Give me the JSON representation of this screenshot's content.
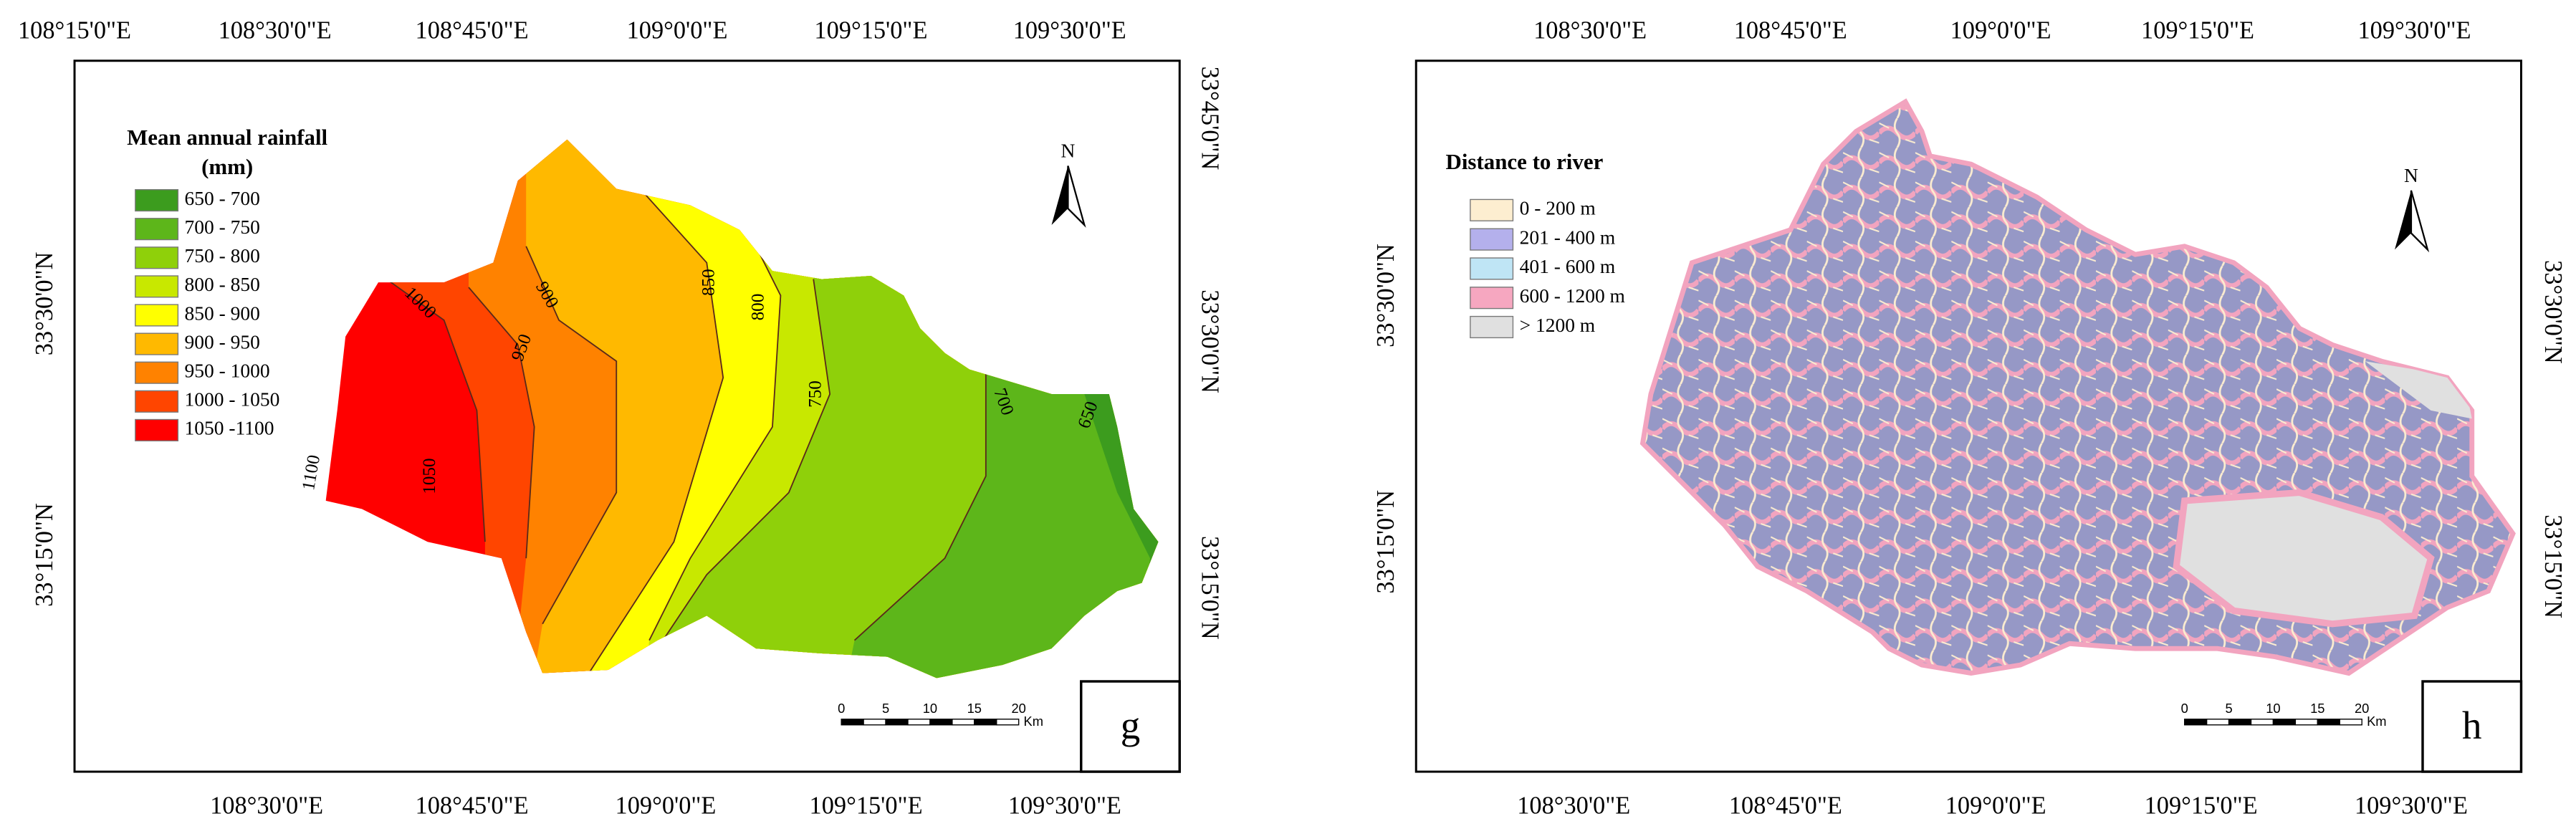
{
  "panels": [
    {
      "label": "g",
      "top_labels": [
        "108°15'0\"E",
        "108°30'0\"E",
        "108°45'0\"E",
        "109°0'0\"E",
        "109°15'0\"E",
        "109°30'0\"E"
      ],
      "bottom_labels": [
        "108°30'0\"E",
        "108°45'0\"E",
        "109°0'0\"E",
        "109°15'0\"E",
        "109°30'0\"E"
      ],
      "left_labels": [
        "33°30'0\"N",
        "33°15'0\"N"
      ],
      "right_labels": [
        "33°45'0\"N",
        "33°30'0\"N",
        "33°15'0\"N"
      ],
      "legend": {
        "title": "Mean annual rainfall",
        "subtitle": "(mm)",
        "items": [
          {
            "label": "650 - 700",
            "color": "#3c9c1e"
          },
          {
            "label": "700 - 750",
            "color": "#5db61a"
          },
          {
            "label": "750 - 800",
            "color": "#8fd00a"
          },
          {
            "label": "800 - 850",
            "color": "#c8e800"
          },
          {
            "label": "850 - 900",
            "color": "#ffff00"
          },
          {
            "label": "900 - 950",
            "color": "#ffb900"
          },
          {
            "label": "950 - 1000",
            "color": "#ff8200"
          },
          {
            "label": "1000 - 1050",
            "color": "#ff4500"
          },
          {
            "label": "1050 -1100",
            "color": "#ff0000"
          }
        ]
      },
      "contour_labels": [
        "1100",
        "1050",
        "1000",
        "950",
        "900",
        "850",
        "800",
        "750",
        "700",
        "650"
      ],
      "north": "N",
      "scale": {
        "ticks": [
          0,
          5,
          10,
          15,
          20
        ],
        "unit": "Km"
      }
    },
    {
      "label": "h",
      "top_labels": [
        "108°30'0\"E",
        "108°45'0\"E",
        "109°0'0\"E",
        "109°15'0\"E",
        "109°30'0\"E"
      ],
      "bottom_labels": [
        "108°30'0\"E",
        "108°45'0\"E",
        "109°0'0\"E",
        "109°15'0\"E",
        "109°30'0\"E"
      ],
      "left_labels": [
        "33°30'0\"N",
        "33°15'0\"N"
      ],
      "right_labels": [
        "33°30'0\"N",
        "33°15'0\"N"
      ],
      "legend": {
        "title": "Distance to river",
        "items": [
          {
            "label": "0 - 200 m",
            "color": "#fdeed0"
          },
          {
            "label": "201 - 400 m",
            "color": "#b4b0ec"
          },
          {
            "label": "401 - 600 m",
            "color": "#bfe5f5"
          },
          {
            "label": "600 - 1200 m",
            "color": "#f6a7c0"
          },
          {
            "label": "> 1200 m",
            "color": "#e0e0e0"
          }
        ]
      },
      "north": "N",
      "scale": {
        "ticks": [
          0,
          5,
          10,
          15,
          20
        ],
        "unit": "Km"
      }
    }
  ]
}
